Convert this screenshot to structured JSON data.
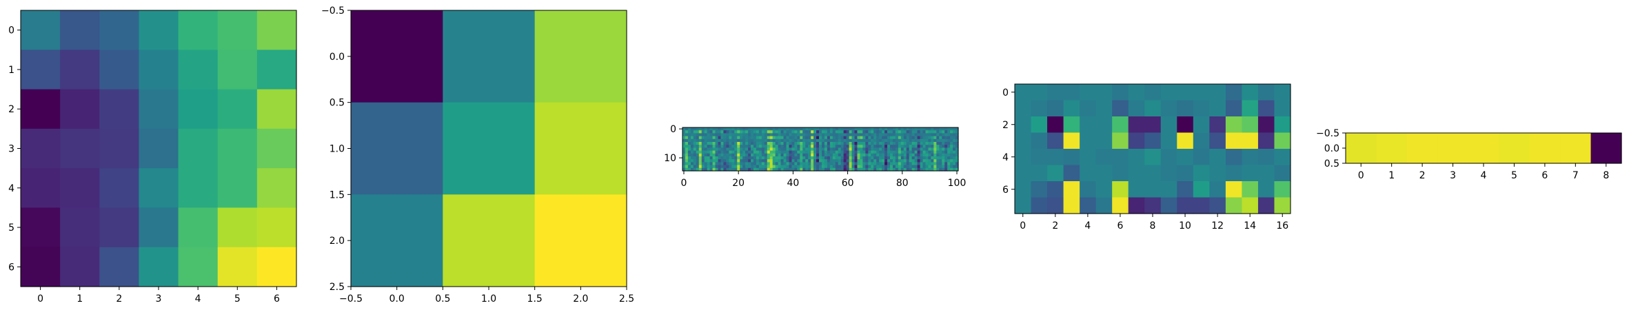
{
  "chart_data": [
    {
      "type": "heatmap",
      "colormap": "viridis",
      "rows": 7,
      "cols": 7,
      "x_ticks": [
        "0",
        "1",
        "2",
        "3",
        "4",
        "5",
        "6"
      ],
      "y_ticks": [
        "0",
        "1",
        "2",
        "3",
        "4",
        "5",
        "6"
      ],
      "values": [
        [
          0.42,
          0.27,
          0.33,
          0.5,
          0.65,
          0.7,
          0.8
        ],
        [
          0.25,
          0.17,
          0.28,
          0.44,
          0.58,
          0.69,
          0.6
        ],
        [
          0.0,
          0.1,
          0.18,
          0.4,
          0.56,
          0.62,
          0.85
        ],
        [
          0.12,
          0.15,
          0.17,
          0.37,
          0.61,
          0.68,
          0.77
        ],
        [
          0.1,
          0.12,
          0.2,
          0.47,
          0.61,
          0.68,
          0.84
        ],
        [
          0.02,
          0.13,
          0.17,
          0.4,
          0.7,
          0.88,
          0.9
        ],
        [
          0.01,
          0.12,
          0.25,
          0.51,
          0.71,
          0.96,
          1.0
        ]
      ]
    },
    {
      "type": "heatmap",
      "colormap": "viridis",
      "rows": 3,
      "cols": 3,
      "x_ticks": [
        "−0.5",
        "0.0",
        "0.5",
        "1.0",
        "1.5",
        "2.0",
        "2.5"
      ],
      "y_ticks": [
        "−0.5",
        "0.0",
        "0.5",
        "1.0",
        "1.5",
        "2.0",
        "2.5"
      ],
      "xlim": [
        -0.5,
        2.5
      ],
      "ylim": [
        2.5,
        -0.5
      ],
      "values": [
        [
          0.0,
          0.45,
          0.85
        ],
        [
          0.32,
          0.55,
          0.9
        ],
        [
          0.44,
          0.9,
          1.0
        ]
      ]
    },
    {
      "type": "heatmap",
      "colormap": "viridis",
      "rows": 15,
      "cols": 101,
      "x_ticks": [
        "0",
        "20",
        "40",
        "60",
        "80",
        "100"
      ],
      "y_ticks": [
        "0",
        "10"
      ]
    },
    {
      "type": "heatmap",
      "colormap": "viridis",
      "rows": 8,
      "cols": 17,
      "x_ticks": [
        "0",
        "2",
        "4",
        "6",
        "8",
        "10",
        "12",
        "14",
        "16"
      ],
      "y_ticks": [
        "0",
        "2",
        "4",
        "6"
      ],
      "values": [
        [
          0.45,
          0.45,
          0.42,
          0.42,
          0.45,
          0.45,
          0.4,
          0.45,
          0.42,
          0.45,
          0.45,
          0.45,
          0.45,
          0.35,
          0.48,
          0.4,
          0.45
        ],
        [
          0.45,
          0.42,
          0.38,
          0.48,
          0.42,
          0.45,
          0.3,
          0.42,
          0.48,
          0.42,
          0.38,
          0.42,
          0.45,
          0.3,
          0.58,
          0.25,
          0.45
        ],
        [
          0.45,
          0.55,
          0.0,
          0.65,
          0.45,
          0.45,
          0.7,
          0.1,
          0.1,
          0.45,
          0.0,
          0.45,
          0.15,
          0.8,
          0.75,
          0.05,
          0.55
        ],
        [
          0.45,
          0.4,
          0.25,
          0.98,
          0.45,
          0.45,
          0.82,
          0.2,
          0.28,
          0.45,
          0.98,
          0.42,
          0.25,
          0.98,
          0.98,
          0.15,
          0.78
        ],
        [
          0.45,
          0.42,
          0.42,
          0.4,
          0.45,
          0.42,
          0.42,
          0.45,
          0.5,
          0.42,
          0.45,
          0.4,
          0.45,
          0.35,
          0.42,
          0.4,
          0.45
        ],
        [
          0.45,
          0.45,
          0.5,
          0.3,
          0.45,
          0.45,
          0.42,
          0.45,
          0.45,
          0.42,
          0.4,
          0.48,
          0.45,
          0.42,
          0.45,
          0.45,
          0.4
        ],
        [
          0.45,
          0.35,
          0.28,
          0.98,
          0.4,
          0.45,
          0.9,
          0.45,
          0.45,
          0.45,
          0.3,
          0.55,
          0.42,
          0.98,
          0.78,
          0.45,
          0.72
        ],
        [
          0.45,
          0.28,
          0.25,
          0.98,
          0.3,
          0.4,
          0.98,
          0.1,
          0.15,
          0.3,
          0.2,
          0.2,
          0.25,
          0.82,
          0.9,
          0.15,
          0.85
        ]
      ]
    },
    {
      "type": "heatmap",
      "colormap": "viridis",
      "rows": 1,
      "cols": 9,
      "x_ticks": [
        "0",
        "1",
        "2",
        "3",
        "4",
        "5",
        "6",
        "7",
        "8"
      ],
      "y_ticks": [
        "−0.5",
        "0.0",
        "0.5"
      ],
      "values": [
        [
          0.96,
          0.97,
          0.98,
          0.98,
          0.98,
          0.97,
          0.98,
          0.98,
          0.0
        ]
      ]
    }
  ]
}
